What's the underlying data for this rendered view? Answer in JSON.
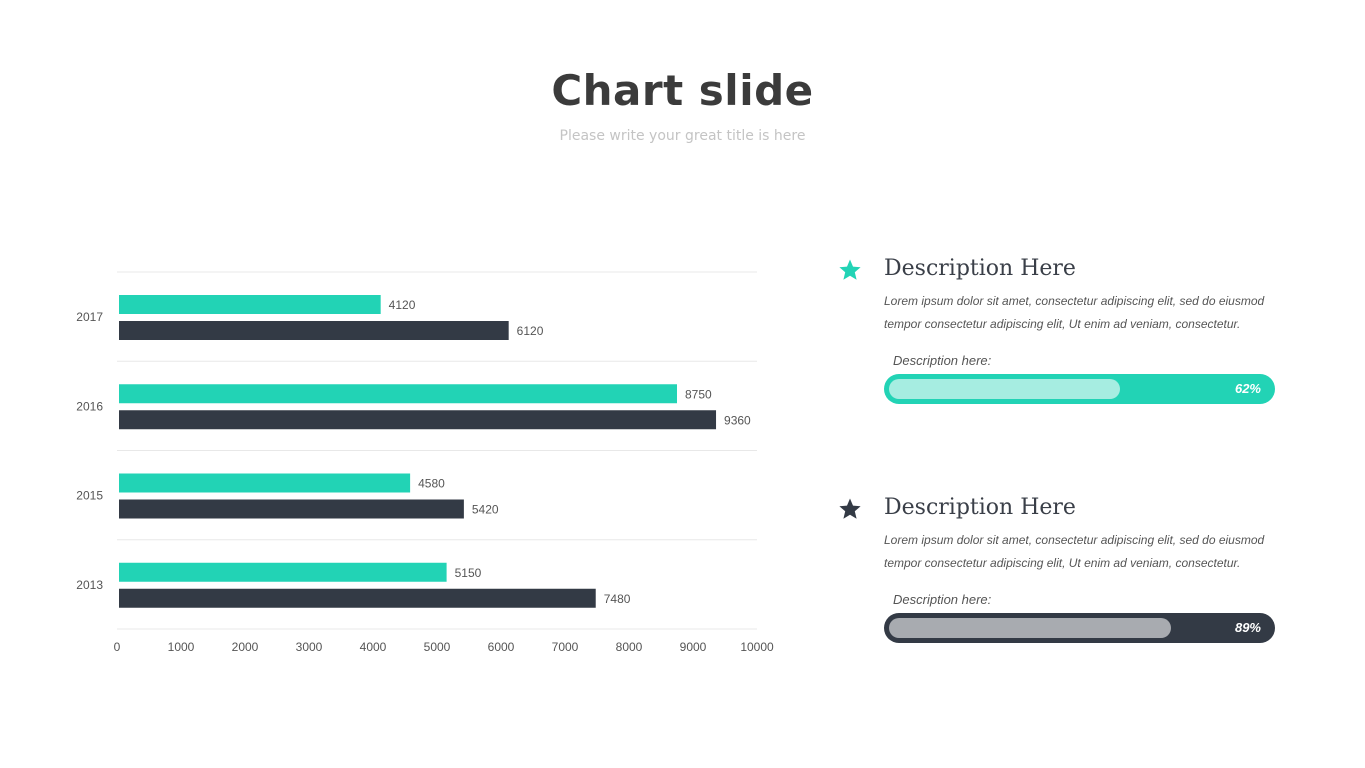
{
  "slide": {
    "title": "Chart slide",
    "subtitle": "Please write your great title is here"
  },
  "colors": {
    "accent": "#22d3b5",
    "dark": "#333a45",
    "grid": "#e8e8e8",
    "text": "#555555"
  },
  "chart_data": {
    "type": "bar",
    "orientation": "horizontal",
    "categories": [
      "2017",
      "2016",
      "2015",
      "2013"
    ],
    "series": [
      {
        "values": [
          4120,
          8750,
          4580,
          5150
        ],
        "color": "#22d3b5"
      },
      {
        "values": [
          6120,
          9360,
          5420,
          7480
        ],
        "color": "#333a45"
      }
    ],
    "xlim": [
      0,
      10000
    ],
    "xticks": [
      0,
      1000,
      2000,
      3000,
      4000,
      5000,
      6000,
      7000,
      8000,
      9000,
      10000
    ],
    "title": "",
    "xlabel": "",
    "ylabel": "",
    "grid": true,
    "data_labels": true
  },
  "descriptions": [
    {
      "heading": "Description Here",
      "line1": "Lorem  ipsum dolor sit amet, consectetur  adipiscing elit, sed do eiusmod",
      "line2": "tempor consectetur  adipiscing elit, Ut enim ad  veniam, consectetur.",
      "progress_label": "Description here:",
      "progress_value": 62,
      "progress_text": "62%",
      "icon": "star-icon",
      "theme": "accent"
    },
    {
      "heading": "Description Here",
      "line1": "Lorem  ipsum dolor sit amet, consectetur  adipiscing elit, sed do eiusmod",
      "line2": "tempor consectetur  adipiscing elit, Ut enim ad  veniam, consectetur.",
      "progress_label": "Description here:",
      "progress_value": 89,
      "progress_text": "89%",
      "icon": "star-icon",
      "theme": "dark"
    }
  ]
}
